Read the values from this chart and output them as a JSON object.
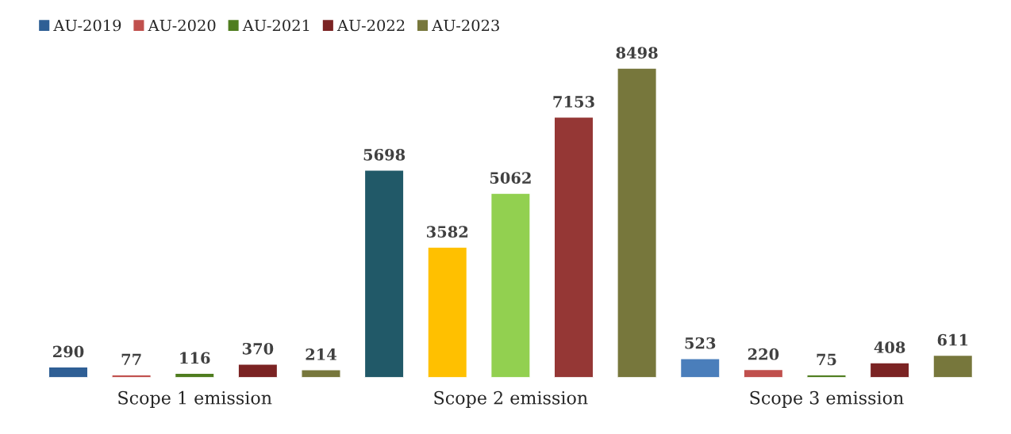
{
  "chart_data": {
    "type": "bar",
    "categories": [
      "Scope 1 emission",
      "Scope 2 emission",
      "Scope 3 emission"
    ],
    "series": [
      {
        "name": "AU-2019",
        "color": "#2f5f95",
        "colors": [
          "#2f5f95",
          "#215968",
          "#4a7ebb"
        ],
        "values": [
          290,
          5698,
          523
        ]
      },
      {
        "name": "AU-2020",
        "color": "#c0504d",
        "colors": [
          "#c0504d",
          "#ffc000",
          "#c0504d"
        ],
        "values": [
          77,
          3582,
          220
        ]
      },
      {
        "name": "AU-2021",
        "color": "#4f7d1f",
        "colors": [
          "#4f7d1f",
          "#92d050",
          "#4f7d1f"
        ],
        "values": [
          116,
          5062,
          75
        ]
      },
      {
        "name": "AU-2022",
        "color": "#7b2323",
        "colors": [
          "#7b2323",
          "#953735",
          "#7b2323"
        ],
        "values": [
          370,
          7153,
          408
        ]
      },
      {
        "name": "AU-2023",
        "color": "#77773c",
        "colors": [
          "#77773c",
          "#77773c",
          "#77773c"
        ],
        "values": [
          214,
          8498,
          611
        ]
      }
    ],
    "data_labels": true,
    "legend": "top left",
    "grid": false
  }
}
